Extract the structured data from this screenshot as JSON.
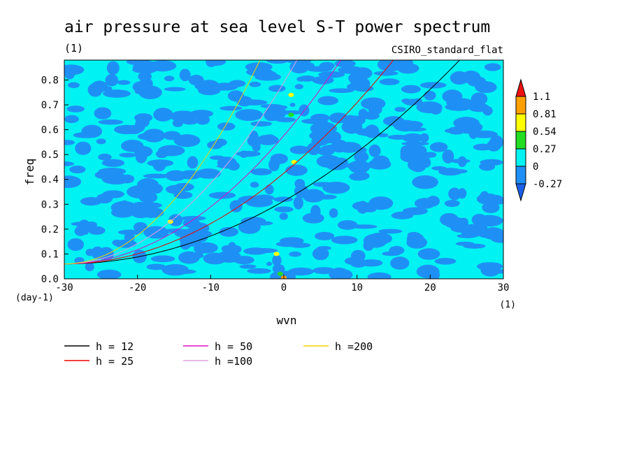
{
  "chart_data": {
    "type": "heatmap",
    "title": "air pressure at sea level S-T power spectrum",
    "subtitle": "(1)",
    "model_label": "CSIRO_standard_flat",
    "xlabel": "wvn",
    "ylabel": "freq",
    "x_unit_label": "(1)",
    "y_unit_label": "(day-1)",
    "xlim": [
      -30,
      30
    ],
    "ylim": [
      0,
      0.88
    ],
    "x_ticks": [
      -30,
      -20,
      -10,
      0,
      10,
      20,
      30
    ],
    "x_tick_labels": [
      "-30",
      "-20",
      "-10",
      "0",
      "10",
      "20",
      "30"
    ],
    "y_ticks": [
      0.0,
      0.1,
      0.2,
      0.3,
      0.4,
      0.5,
      0.6,
      0.7,
      0.8
    ],
    "y_tick_labels": [
      "0.0",
      "0.1",
      "0.2",
      "0.3",
      "0.4",
      "0.5",
      "0.6",
      "0.7",
      "0.8"
    ],
    "colorbar": {
      "levels": [
        "1.1",
        "0.81",
        "0.54",
        "0.27",
        "0",
        "-0.27"
      ],
      "colors": {
        "above": "#ee1111",
        "b_081_11": "#ffa000",
        "b_054_081": "#ffff00",
        "b_027_054": "#22dd22",
        "b_0_027": "#00f2f2",
        "b_m027_0": "#1e90f5",
        "below": "#1a5fe8"
      }
    },
    "field_note_colors": {
      "background": "#00f2f2",
      "negative_patch": "#1e90f5"
    },
    "series": [
      {
        "name": "h = 12",
        "h": 12,
        "color": "#000000"
      },
      {
        "name": "h = 25",
        "h": 25,
        "color": "#ee0000"
      },
      {
        "name": "h = 50",
        "h": 50,
        "color": "#e010c0"
      },
      {
        "name": "h =100",
        "h": 100,
        "color": "#e0a0e0"
      },
      {
        "name": "h =200",
        "h": 200,
        "color": "#f0d000"
      }
    ],
    "grid": false,
    "legend_placement": "bottom"
  }
}
